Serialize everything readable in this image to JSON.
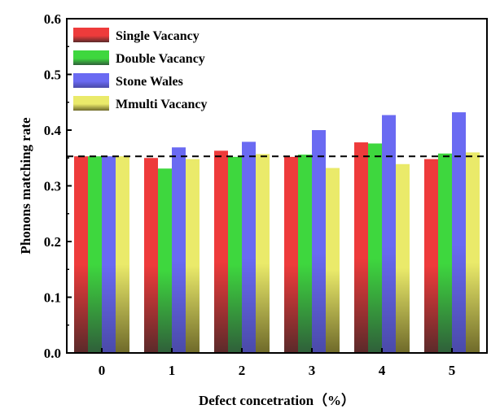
{
  "chart_data": {
    "type": "bar",
    "title": "",
    "xlabel": "Defect concetration（%）",
    "ylabel": "Phonons matching rate",
    "categories": [
      "0",
      "1",
      "2",
      "3",
      "4",
      "5"
    ],
    "ylim": [
      0,
      0.6
    ],
    "yticks": [
      "0.0",
      "0.1",
      "0.2",
      "0.3",
      "0.4",
      "0.5",
      "0.6"
    ],
    "yticks_values": [
      0,
      0.1,
      0.2,
      0.3,
      0.4,
      0.5,
      0.6
    ],
    "reference_line": 0.353,
    "legend_position": "top-left",
    "grid": false,
    "series": [
      {
        "name": "Single Vacancy",
        "color": "#ee3b3b",
        "values": [
          0.353,
          0.35,
          0.363,
          0.352,
          0.378,
          0.348
        ]
      },
      {
        "name": "Double Vacancy",
        "color": "#3ed73e",
        "values": [
          0.353,
          0.331,
          0.352,
          0.356,
          0.376,
          0.358
        ]
      },
      {
        "name": "Stone Wales",
        "color": "#6a6af2",
        "values": [
          0.353,
          0.369,
          0.379,
          0.4,
          0.427,
          0.432
        ]
      },
      {
        "name": "Mmulti Vacancy",
        "color": "#eaea6a",
        "values": [
          0.353,
          0.348,
          0.357,
          0.332,
          0.339,
          0.36
        ]
      }
    ]
  }
}
